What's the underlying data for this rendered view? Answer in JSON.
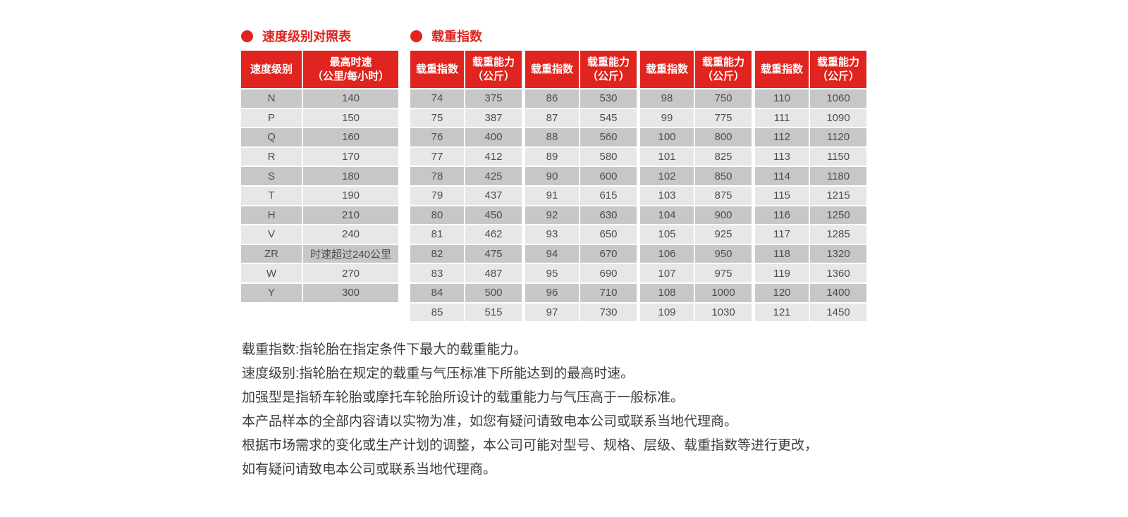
{
  "colors": {
    "accent_red": "#e0241f",
    "row_dark": "#c8c7c7",
    "row_light": "#e8e7e7",
    "cell_text": "#4d4d4d",
    "note_text": "#3c3c3c",
    "header_text": "#ffffff"
  },
  "speed_table": {
    "title": "速度级别对照表",
    "bullet_icon": "red-dot",
    "headers": [
      "速度级别",
      "最高时速\n（公里/每小时）"
    ],
    "rows": [
      [
        "N",
        "140"
      ],
      [
        "P",
        "150"
      ],
      [
        "Q",
        "160"
      ],
      [
        "R",
        "170"
      ],
      [
        "S",
        "180"
      ],
      [
        "T",
        "190"
      ],
      [
        "H",
        "210"
      ],
      [
        "V",
        "240"
      ],
      [
        "ZR",
        "时速超过240公里"
      ],
      [
        "W",
        "270"
      ],
      [
        "Y",
        "300"
      ]
    ]
  },
  "load_table": {
    "title": "载重指数",
    "bullet_icon": "red-dot",
    "headers": [
      "载重指数",
      "载重能力\n（公斤）"
    ],
    "groups": [
      {
        "rows": [
          [
            "74",
            "375"
          ],
          [
            "75",
            "387"
          ],
          [
            "76",
            "400"
          ],
          [
            "77",
            "412"
          ],
          [
            "78",
            "425"
          ],
          [
            "79",
            "437"
          ],
          [
            "80",
            "450"
          ],
          [
            "81",
            "462"
          ],
          [
            "82",
            "475"
          ],
          [
            "83",
            "487"
          ],
          [
            "84",
            "500"
          ],
          [
            "85",
            "515"
          ]
        ]
      },
      {
        "rows": [
          [
            "86",
            "530"
          ],
          [
            "87",
            "545"
          ],
          [
            "88",
            "560"
          ],
          [
            "89",
            "580"
          ],
          [
            "90",
            "600"
          ],
          [
            "91",
            "615"
          ],
          [
            "92",
            "630"
          ],
          [
            "93",
            "650"
          ],
          [
            "94",
            "670"
          ],
          [
            "95",
            "690"
          ],
          [
            "96",
            "710"
          ],
          [
            "97",
            "730"
          ]
        ]
      },
      {
        "rows": [
          [
            "98",
            "750"
          ],
          [
            "99",
            "775"
          ],
          [
            "100",
            "800"
          ],
          [
            "101",
            "825"
          ],
          [
            "102",
            "850"
          ],
          [
            "103",
            "875"
          ],
          [
            "104",
            "900"
          ],
          [
            "105",
            "925"
          ],
          [
            "106",
            "950"
          ],
          [
            "107",
            "975"
          ],
          [
            "108",
            "1000"
          ],
          [
            "109",
            "1030"
          ]
        ]
      },
      {
        "rows": [
          [
            "110",
            "1060"
          ],
          [
            "111",
            "1090"
          ],
          [
            "112",
            "1120"
          ],
          [
            "113",
            "1150"
          ],
          [
            "114",
            "1180"
          ],
          [
            "115",
            "1215"
          ],
          [
            "116",
            "1250"
          ],
          [
            "117",
            "1285"
          ],
          [
            "118",
            "1320"
          ],
          [
            "119",
            "1360"
          ],
          [
            "120",
            "1400"
          ],
          [
            "121",
            "1450"
          ]
        ]
      }
    ]
  },
  "notes": [
    "载重指数:指轮胎在指定条件下最大的载重能力。",
    "速度级别:指轮胎在规定的载重与气压标准下所能达到的最高时速。",
    "加强型是指轿车轮胎或摩托车轮胎所设计的载重能力与气压高于一般标准。",
    "本产品样本的全部内容请以实物为准，如您有疑问请致电本公司或联系当地代理商。",
    "根据市场需求的变化或生产计划的调整，本公司可能对型号、规格、层级、载重指数等进行更改，",
    "如有疑问请致电本公司或联系当地代理商。"
  ]
}
